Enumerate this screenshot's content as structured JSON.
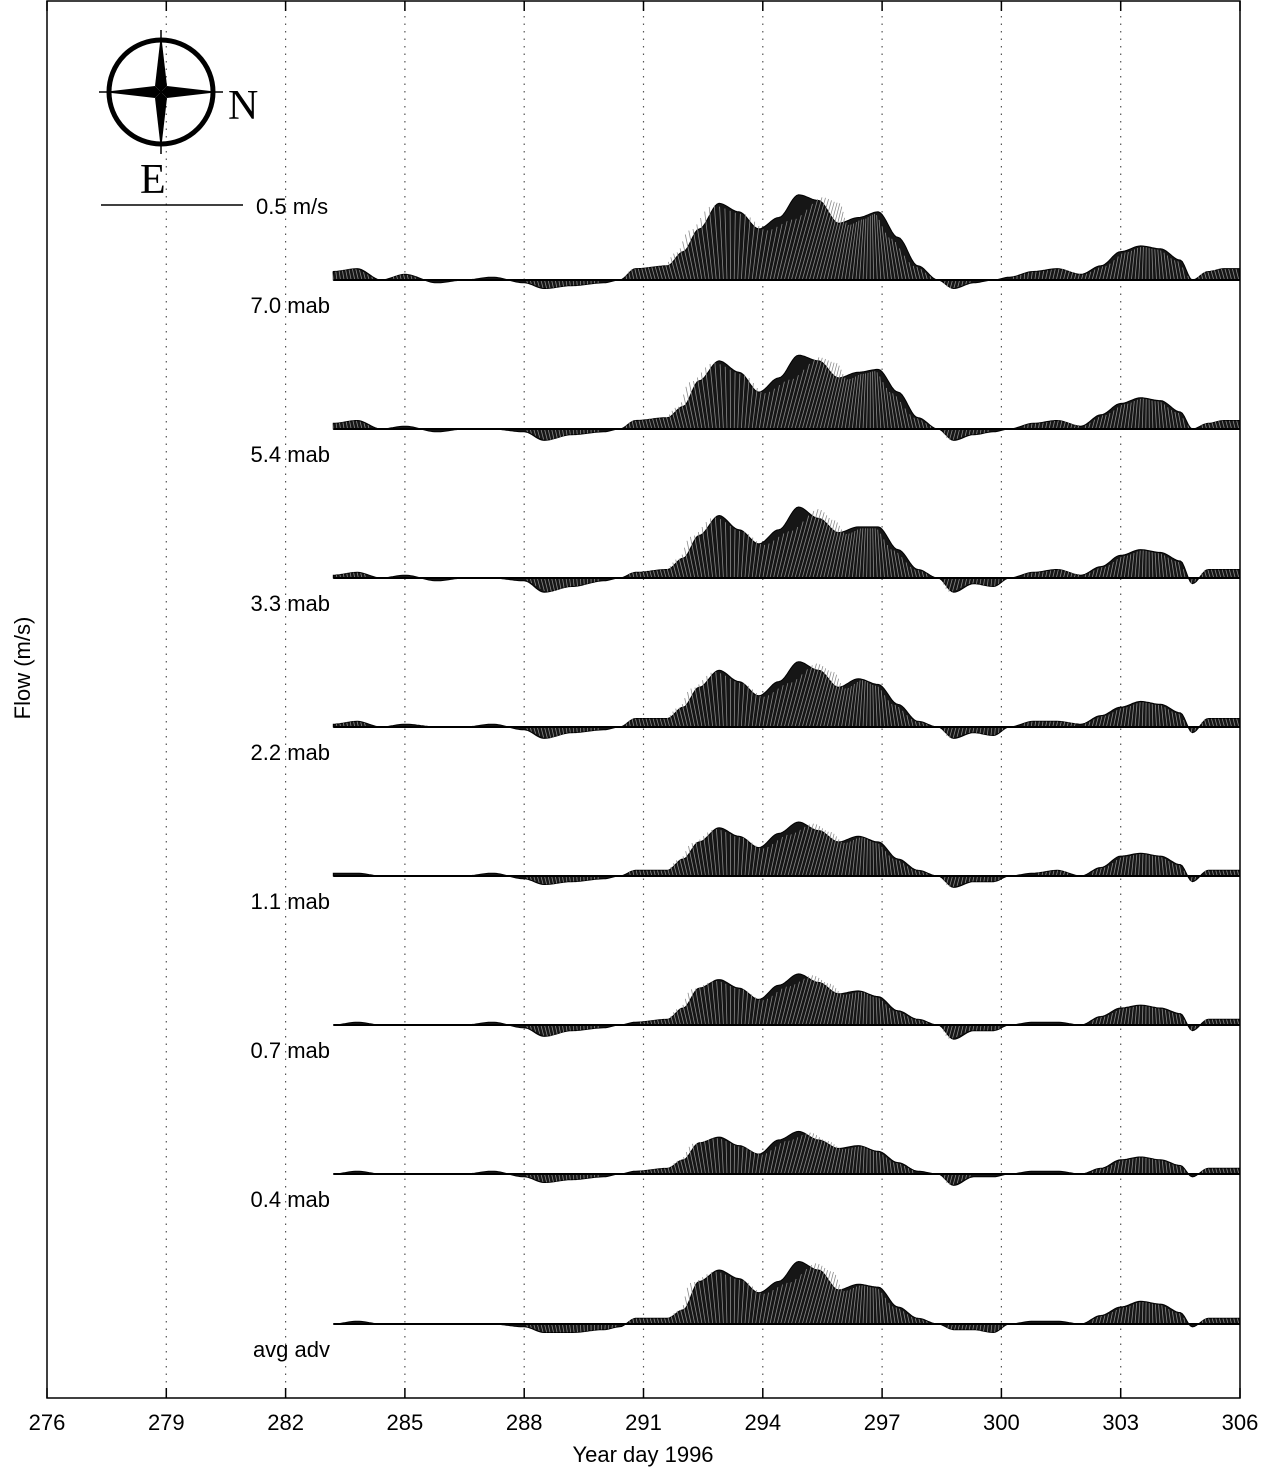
{
  "chart_data": {
    "type": "stick-plot",
    "xlabel": "Year day 1996",
    "ylabel": "Flow (m/s)",
    "xlim": [
      276,
      306
    ],
    "xticks": [
      276,
      279,
      282,
      285,
      288,
      291,
      294,
      297,
      300,
      303,
      306
    ],
    "grid": "dotted vertical at x ticks",
    "compass": {
      "north_label": "N",
      "east_label": "E",
      "north_points": "right",
      "east_points": "down"
    },
    "scale_bar": {
      "value": 0.5,
      "label": "0.5 m/s"
    },
    "envelope_note": "approximate speed in m/s; positive = stick pointing up (west), negative = pointing down (east)",
    "envelope_x": [
      283.2,
      283.8,
      284.4,
      285.0,
      285.8,
      286.5,
      287.2,
      288.0,
      288.5,
      289.2,
      290.0,
      290.4,
      290.8,
      291.6,
      292.0,
      292.4,
      292.9,
      293.4,
      293.9,
      294.4,
      294.9,
      295.4,
      295.9,
      296.4,
      296.9,
      297.4,
      297.9,
      298.4,
      298.8,
      299.3,
      299.8,
      300.2,
      300.8,
      301.4,
      302.0,
      302.5,
      303.0,
      303.5,
      304.0,
      304.5,
      304.8,
      305.2,
      305.6,
      306.0
    ],
    "series": [
      {
        "name": "7.0 mab",
        "values": [
          0.03,
          0.04,
          0.0,
          0.02,
          -0.01,
          0.0,
          0.01,
          -0.01,
          -0.03,
          -0.02,
          -0.01,
          0.0,
          0.04,
          0.05,
          0.1,
          0.18,
          0.27,
          0.24,
          0.18,
          0.22,
          0.3,
          0.28,
          0.2,
          0.22,
          0.24,
          0.15,
          0.05,
          0.0,
          -0.03,
          -0.01,
          0.0,
          0.01,
          0.03,
          0.04,
          0.02,
          0.05,
          0.1,
          0.12,
          0.11,
          0.07,
          0.0,
          0.03,
          0.04,
          0.04
        ]
      },
      {
        "name": "5.4 mab",
        "values": [
          0.02,
          0.03,
          0.0,
          0.01,
          -0.01,
          0.0,
          0.0,
          -0.01,
          -0.04,
          -0.02,
          -0.01,
          0.0,
          0.03,
          0.04,
          0.08,
          0.17,
          0.24,
          0.2,
          0.13,
          0.18,
          0.26,
          0.24,
          0.18,
          0.2,
          0.21,
          0.13,
          0.04,
          0.0,
          -0.04,
          -0.02,
          -0.01,
          0.0,
          0.02,
          0.03,
          0.01,
          0.05,
          0.09,
          0.11,
          0.1,
          0.06,
          0.0,
          0.02,
          0.03,
          0.03
        ]
      },
      {
        "name": "3.3 mab",
        "values": [
          0.01,
          0.02,
          0.0,
          0.01,
          -0.01,
          0.0,
          0.0,
          -0.01,
          -0.05,
          -0.03,
          -0.01,
          0.0,
          0.02,
          0.03,
          0.07,
          0.15,
          0.22,
          0.17,
          0.12,
          0.17,
          0.25,
          0.21,
          0.16,
          0.18,
          0.18,
          0.1,
          0.03,
          0.0,
          -0.05,
          -0.02,
          -0.03,
          0.0,
          0.02,
          0.03,
          0.01,
          0.04,
          0.08,
          0.1,
          0.09,
          0.06,
          -0.02,
          0.03,
          0.03,
          0.03
        ]
      },
      {
        "name": "2.2 mab",
        "values": [
          0.01,
          0.02,
          0.0,
          0.01,
          0.0,
          0.0,
          0.01,
          -0.01,
          -0.04,
          -0.02,
          -0.01,
          0.0,
          0.03,
          0.03,
          0.07,
          0.14,
          0.2,
          0.16,
          0.11,
          0.16,
          0.23,
          0.2,
          0.14,
          0.17,
          0.15,
          0.08,
          0.02,
          0.0,
          -0.04,
          -0.02,
          -0.03,
          0.0,
          0.02,
          0.02,
          0.01,
          0.04,
          0.07,
          0.09,
          0.08,
          0.05,
          -0.02,
          0.03,
          0.03,
          0.03
        ]
      },
      {
        "name": "1.1 mab",
        "values": [
          0.01,
          0.01,
          0.0,
          0.0,
          0.0,
          0.0,
          0.01,
          -0.01,
          -0.03,
          -0.02,
          -0.01,
          0.0,
          0.02,
          0.02,
          0.06,
          0.12,
          0.17,
          0.14,
          0.1,
          0.15,
          0.19,
          0.16,
          0.12,
          0.14,
          0.12,
          0.06,
          0.02,
          0.0,
          -0.04,
          -0.02,
          -0.02,
          0.0,
          0.01,
          0.02,
          0.0,
          0.03,
          0.07,
          0.08,
          0.07,
          0.04,
          -0.02,
          0.02,
          0.02,
          0.02
        ]
      },
      {
        "name": "0.7 mab",
        "values": [
          0.0,
          0.01,
          0.0,
          0.0,
          0.0,
          0.0,
          0.01,
          -0.01,
          -0.04,
          -0.02,
          -0.01,
          0.0,
          0.01,
          0.02,
          0.06,
          0.13,
          0.16,
          0.13,
          0.09,
          0.14,
          0.18,
          0.15,
          0.11,
          0.12,
          0.1,
          0.05,
          0.02,
          0.0,
          -0.05,
          -0.02,
          -0.02,
          0.0,
          0.01,
          0.01,
          0.0,
          0.03,
          0.06,
          0.07,
          0.06,
          0.04,
          -0.02,
          0.02,
          0.02,
          0.02
        ]
      },
      {
        "name": "0.4 mab",
        "values": [
          0.0,
          0.01,
          0.0,
          0.0,
          0.0,
          0.0,
          0.01,
          -0.01,
          -0.03,
          -0.02,
          -0.01,
          0.0,
          0.01,
          0.02,
          0.05,
          0.11,
          0.13,
          0.1,
          0.07,
          0.12,
          0.15,
          0.12,
          0.09,
          0.1,
          0.08,
          0.04,
          0.01,
          0.0,
          -0.04,
          -0.01,
          -0.01,
          0.0,
          0.01,
          0.01,
          0.0,
          0.02,
          0.05,
          0.06,
          0.05,
          0.03,
          -0.01,
          0.02,
          0.02,
          0.02
        ]
      },
      {
        "name": "avg adv",
        "values": [
          0.0,
          0.01,
          0.0,
          0.0,
          0.0,
          0.0,
          0.0,
          -0.01,
          -0.03,
          -0.03,
          -0.02,
          -0.01,
          0.02,
          0.02,
          0.05,
          0.15,
          0.19,
          0.16,
          0.11,
          0.15,
          0.22,
          0.19,
          0.12,
          0.14,
          0.13,
          0.06,
          0.02,
          0.0,
          -0.02,
          -0.02,
          -0.03,
          0.0,
          0.01,
          0.01,
          0.0,
          0.03,
          0.06,
          0.08,
          0.07,
          0.04,
          -0.01,
          0.02,
          0.02,
          0.02
        ]
      }
    ]
  }
}
